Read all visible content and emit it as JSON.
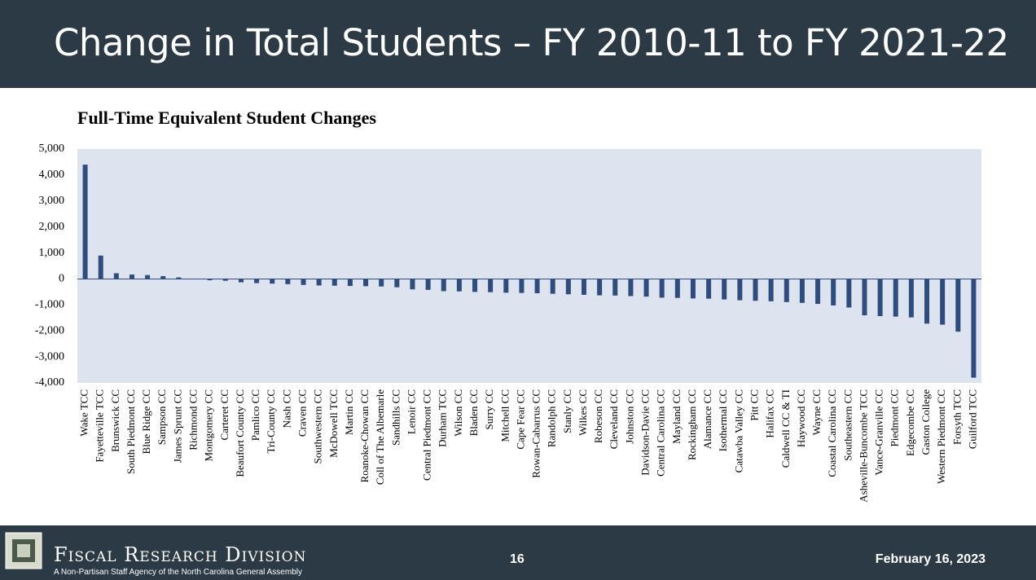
{
  "header": {
    "title": "Change in Total Students – FY 2010-11 to FY 2021-22"
  },
  "chart_data": {
    "type": "bar",
    "title": "Full-Time Equivalent Student Changes",
    "categories": [
      "Wake TCC",
      "Fayetteville TCC",
      "Brunswick CC",
      "South Piedmont CC",
      "Blue Ridge CC",
      "Sampson CC",
      "James Sprunt CC",
      "Richmond CC",
      "Montgomery CC",
      "Carteret CC",
      "Beaufort County CC",
      "Pamlico CC",
      "Tri-County CC",
      "Nash CC",
      "Craven CC",
      "Southwestern CC",
      "McDowell TCC",
      "Martin CC",
      "Roanoke-Chowan CC",
      "Coll of The Albemarle",
      "Sandhills CC",
      "Lenoir CC",
      "Central Piedmont CC",
      "Durham TCC",
      "Wilson CC",
      "Bladen CC",
      "Surry CC",
      "Mitchell CC",
      "Cape Fear CC",
      "Rowan-Cabarrus CC",
      "Randolph CC",
      "Stanly CC",
      "Wilkes CC",
      "Robeson CC",
      "Cleveland CC",
      "Johnston CC",
      "Davidson-Davie CC",
      "Central Carolina CC",
      "Mayland CC",
      "Rockingham CC",
      "Alamance CC",
      "Isothermal CC",
      "Catawba Valley CC",
      "Pitt CC",
      "Halifax CC",
      "Caldwell CC & TI",
      "Haywood CC",
      "Wayne CC",
      "Coastal Carolina CC",
      "Southeastern CC",
      "Asheville-Buncombe TCC",
      "Vance-Granville CC",
      "Piedmont CC",
      "Edgecombe CC",
      "Gaston College",
      "Western Piedmont CC",
      "Forsyth TCC",
      "Guilford TCC"
    ],
    "values": [
      4400,
      900,
      220,
      170,
      150,
      110,
      60,
      10,
      -50,
      -70,
      -130,
      -160,
      -180,
      -200,
      -230,
      -250,
      -260,
      -270,
      -280,
      -290,
      -320,
      -400,
      -420,
      -470,
      -480,
      -500,
      -510,
      -530,
      -540,
      -550,
      -570,
      -590,
      -610,
      -630,
      -640,
      -660,
      -680,
      -720,
      -730,
      -750,
      -760,
      -790,
      -820,
      -840,
      -860,
      -890,
      -920,
      -960,
      -1020,
      -1100,
      -1400,
      -1430,
      -1450,
      -1480,
      -1720,
      -1760,
      -2030,
      -3800
    ],
    "color": "#2e4d7e",
    "ylim": [
      -4000,
      5000
    ],
    "yticks": [
      {
        "value": -4000,
        "label": "-4,000"
      },
      {
        "value": -3000,
        "label": "-3,000"
      },
      {
        "value": -2000,
        "label": "-2,000"
      },
      {
        "value": -1000,
        "label": "-1,000"
      },
      0,
      {
        "value": 1000,
        "label": "1,000"
      },
      {
        "value": 2000,
        "label": "2,000"
      },
      {
        "value": 3000,
        "label": "3,000"
      },
      {
        "value": 4000,
        "label": "4,000"
      },
      {
        "value": 5000,
        "label": "5,000"
      }
    ],
    "grid": false
  },
  "footer": {
    "division": "Fiscal Research Division",
    "tagline": "A Non-Partisan Staff Agency of the North Carolina General Assembly",
    "page": "16",
    "date": "February 16, 2023"
  }
}
